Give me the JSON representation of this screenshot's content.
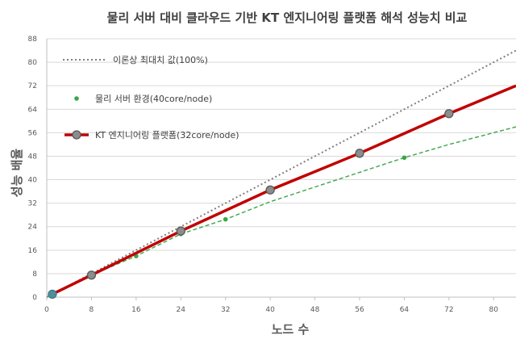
{
  "chart_data": {
    "type": "line",
    "title": "물리 서버 대비 클라우드 기반 KT 엔지니어링 플랫폼 해석 성능치 비교",
    "xlabel": "노드 수",
    "ylabel": "성능 배율",
    "xlim": [
      0,
      84
    ],
    "ylim": [
      0,
      88
    ],
    "x_ticks": [
      "0",
      "8",
      "16",
      "24",
      "32",
      "40",
      "48",
      "56",
      "64",
      "72",
      "80"
    ],
    "y_ticks": [
      "0",
      "8",
      "16",
      "24",
      "32",
      "40",
      "48",
      "56",
      "64",
      "72",
      "80",
      "88"
    ],
    "grid": "horizontal",
    "legend_position": "top-left",
    "series": [
      {
        "name": "이론상 최대치 값(100%)",
        "style": "dotted",
        "color": "#7f7f7f",
        "x": [
          0,
          84
        ],
        "y": [
          0,
          84
        ]
      },
      {
        "name": "물리 서버 환경(40core/node)",
        "style": "dashed-with-dots",
        "color": "#3aa64a",
        "x": [
          1,
          8,
          16,
          24,
          32,
          64
        ],
        "y": [
          1,
          7.5,
          14,
          21.5,
          26.5,
          47.5
        ],
        "line_x": [
          1,
          8,
          16,
          24,
          32,
          40,
          48,
          56,
          64,
          72,
          80,
          84
        ],
        "line_y": [
          1,
          7.5,
          14,
          21.5,
          26.5,
          32.5,
          37.5,
          42.5,
          47.5,
          52,
          56,
          58
        ]
      },
      {
        "name": "KT 엔지니어링 플랫폼(32core/node)",
        "style": "solid-with-markers",
        "color": "#c00000",
        "marker_color": "#8c8c8c",
        "x": [
          1,
          8,
          24,
          40,
          56,
          72
        ],
        "y": [
          1,
          7.5,
          22.5,
          36.5,
          49,
          62.5
        ],
        "line_x": [
          1,
          8,
          24,
          40,
          56,
          72,
          84
        ],
        "line_y": [
          1,
          7.5,
          22.5,
          36.5,
          49,
          62.5,
          72
        ]
      }
    ]
  }
}
